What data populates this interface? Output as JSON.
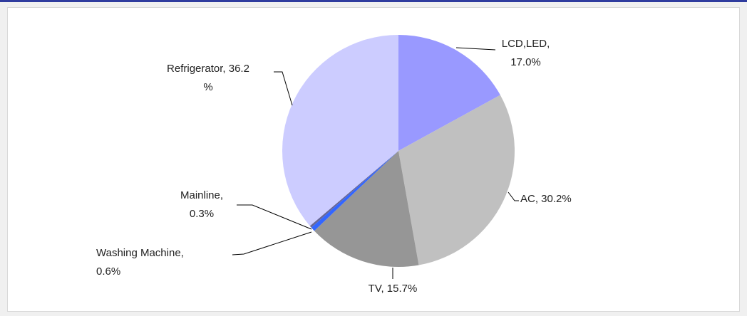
{
  "chart_data": {
    "type": "pie",
    "values": [
      17.0,
      30.2,
      15.7,
      0.6,
      0.3,
      36.2
    ],
    "value_labels": [
      "LCD,LED,\n17.0%",
      "AC, 30.2%",
      "TV, 15.7%",
      "Washing Machine,\n0.6%",
      "Mainline,\n0.3%",
      "Refrigerator, 36.2\n%"
    ],
    "colors": [
      "#9999ff",
      "#c0c0c0",
      "#969696",
      "#3366ff",
      "#666699",
      "#ccccff"
    ]
  }
}
